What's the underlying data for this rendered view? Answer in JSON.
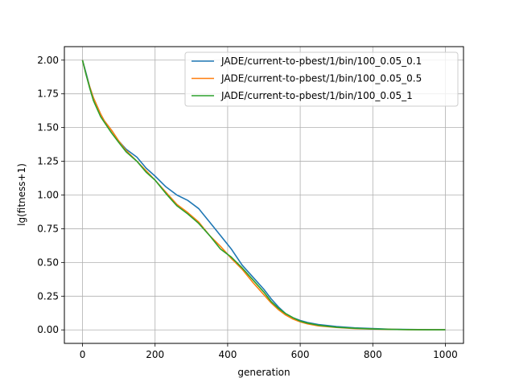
{
  "chart_data": {
    "type": "line",
    "title": "",
    "xlabel": "generation",
    "ylabel": "lg(fitness+1)",
    "xlim": [
      -50,
      1050
    ],
    "ylim": [
      -0.1,
      2.1
    ],
    "xticks": [
      0,
      200,
      400,
      600,
      800,
      1000
    ],
    "yticks": [
      0.0,
      0.25,
      0.5,
      0.75,
      1.0,
      1.25,
      1.5,
      1.75,
      2.0
    ],
    "ytick_labels": [
      "0.00",
      "0.25",
      "0.50",
      "0.75",
      "1.00",
      "1.25",
      "1.50",
      "1.75",
      "2.00"
    ],
    "grid": true,
    "legend_position": "top-right",
    "series": [
      {
        "name": "JADE/current-to-pbest/1/bin/100_0.05_0.1",
        "color": "#1f77b4",
        "x": [
          0,
          10,
          20,
          30,
          40,
          50,
          60,
          80,
          100,
          120,
          150,
          175,
          200,
          230,
          260,
          290,
          320,
          350,
          380,
          410,
          440,
          470,
          500,
          520,
          540,
          560,
          580,
          600,
          620,
          650,
          700,
          750,
          800,
          850,
          900,
          950,
          1000
        ],
        "y": [
          2.0,
          1.9,
          1.8,
          1.72,
          1.66,
          1.6,
          1.55,
          1.48,
          1.4,
          1.34,
          1.28,
          1.2,
          1.14,
          1.06,
          1.0,
          0.96,
          0.9,
          0.8,
          0.7,
          0.6,
          0.48,
          0.39,
          0.3,
          0.23,
          0.17,
          0.12,
          0.09,
          0.07,
          0.055,
          0.04,
          0.025,
          0.015,
          0.01,
          0.005,
          0.003,
          0.002,
          0.001
        ]
      },
      {
        "name": "JADE/current-to-pbest/1/bin/100_0.05_0.5",
        "color": "#ff7f0e",
        "x": [
          0,
          10,
          20,
          30,
          40,
          50,
          60,
          80,
          100,
          120,
          150,
          175,
          200,
          230,
          260,
          290,
          320,
          350,
          380,
          410,
          440,
          470,
          500,
          520,
          540,
          560,
          580,
          600,
          620,
          650,
          700,
          750,
          800,
          850,
          900,
          950,
          1000
        ],
        "y": [
          2.0,
          1.89,
          1.8,
          1.72,
          1.66,
          1.6,
          1.55,
          1.48,
          1.4,
          1.33,
          1.25,
          1.18,
          1.11,
          1.02,
          0.93,
          0.87,
          0.8,
          0.7,
          0.62,
          0.53,
          0.45,
          0.35,
          0.26,
          0.2,
          0.15,
          0.11,
          0.08,
          0.06,
          0.045,
          0.03,
          0.018,
          0.01,
          0.006,
          0.004,
          0.002,
          0.001,
          0.001
        ]
      },
      {
        "name": "JADE/current-to-pbest/1/bin/100_0.05_1",
        "color": "#2ca02c",
        "x": [
          0,
          10,
          20,
          30,
          40,
          50,
          60,
          80,
          100,
          120,
          150,
          175,
          200,
          230,
          260,
          290,
          320,
          350,
          380,
          410,
          440,
          470,
          500,
          520,
          540,
          560,
          580,
          600,
          620,
          650,
          700,
          750,
          800,
          850,
          900,
          950,
          1000
        ],
        "y": [
          2.0,
          1.89,
          1.79,
          1.7,
          1.64,
          1.58,
          1.54,
          1.46,
          1.39,
          1.32,
          1.25,
          1.17,
          1.11,
          1.01,
          0.92,
          0.86,
          0.79,
          0.7,
          0.6,
          0.54,
          0.46,
          0.37,
          0.28,
          0.21,
          0.16,
          0.12,
          0.09,
          0.065,
          0.05,
          0.035,
          0.02,
          0.012,
          0.007,
          0.004,
          0.002,
          0.001,
          0.001
        ]
      }
    ]
  }
}
